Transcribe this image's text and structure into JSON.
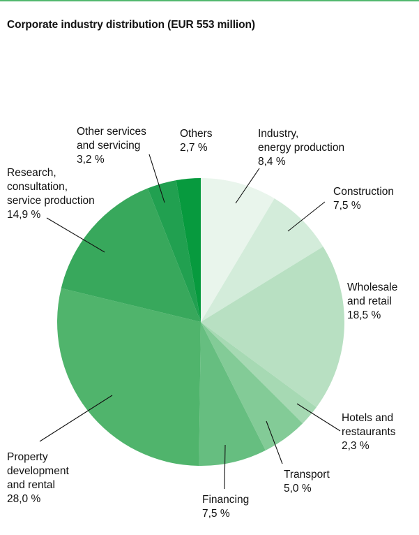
{
  "title": "Corporate industry distribution (EUR 553 million)",
  "chart_data": {
    "type": "pie",
    "title": "Corporate industry distribution (EUR 553 million)",
    "unit": "%",
    "start": "12 o'clock",
    "direction": "clockwise",
    "slices": [
      {
        "label": [
          "Industry,",
          "energy production"
        ],
        "value_text": "8,4 %",
        "value": 8.4,
        "color": "#e9f5ec"
      },
      {
        "label": [
          "Construction"
        ],
        "value_text": "7,5 %",
        "value": 7.5,
        "color": "#d3ecda"
      },
      {
        "label": [
          "Wholesale",
          "and retail"
        ],
        "value_text": "18,5 %",
        "value": 18.5,
        "color": "#b8e0c2"
      },
      {
        "label": [
          "Hotels and",
          "restaurants"
        ],
        "value_text": "2,3 %",
        "value": 2.3,
        "color": "#a6d9b3"
      },
      {
        "label": [
          "Transport"
        ],
        "value_text": "5,0 %",
        "value": 5.0,
        "color": "#83cb97"
      },
      {
        "label": [
          "Financing"
        ],
        "value_text": "7,5 %",
        "value": 7.5,
        "color": "#66be80"
      },
      {
        "label": [
          "Property",
          "development",
          "and rental"
        ],
        "value_text": "28,0 %",
        "value": 28.0,
        "color": "#50b46c"
      },
      {
        "label": [
          "Research,",
          "consultation,",
          "service production"
        ],
        "value_text": "14,9 %",
        "value": 14.9,
        "color": "#38a85c"
      },
      {
        "label": [
          "Other services",
          "and servicing"
        ],
        "value_text": "3,2 %",
        "value": 3.2,
        "color": "#21a050"
      },
      {
        "label": [
          "Others"
        ],
        "value_text": "2,7 %",
        "value": 2.7,
        "color": "#079a3e"
      }
    ]
  }
}
